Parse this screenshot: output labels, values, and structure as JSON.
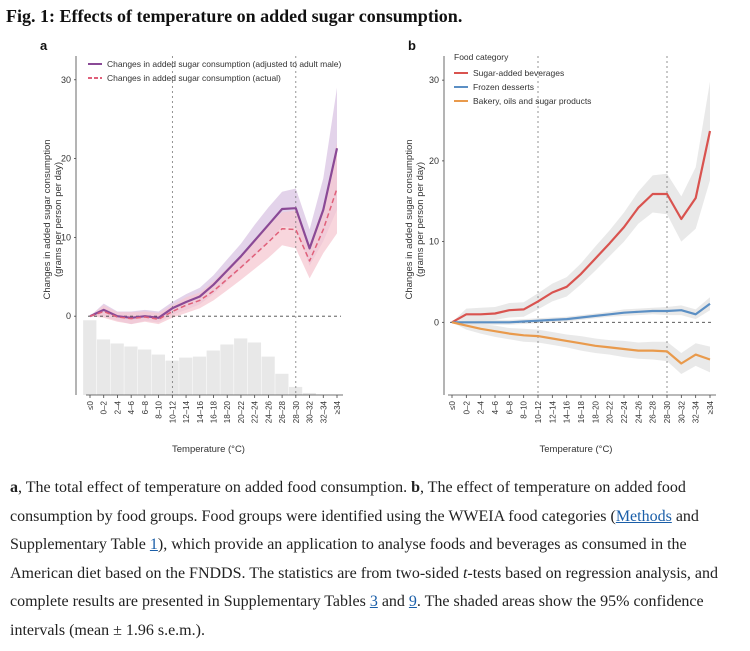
{
  "figure": {
    "title": "Fig. 1: Effects of temperature on added sugar consumption."
  },
  "caption": {
    "p1_label": "a",
    "p1_text": ", The total effect of temperature on added food consumption. ",
    "p2_label": "b",
    "p2_text": ", The effect of temperature on added food consumption by food groups. Food groups were identified using the WWEIA food categories (",
    "methods_link": "Methods",
    "p3_text": " and Supplementary Table ",
    "table1_link": "1",
    "p4_text": "), which provide an application to analyse foods and beverages as consumed in the American diet based on the FNDDS. The statistics are from two-sided ",
    "t_italic": "t",
    "p5_text": "-tests based on regression analysis, and complete results are presented in Supplementary Tables ",
    "table3_link": "3",
    "p6_text": " and ",
    "table9_link": "9",
    "p7_text": ". The shaded areas show the 95% confidence intervals (mean ± 1.96 s.e.m.)."
  },
  "colors": {
    "purple": "#8a4a96",
    "purple_band": "#d9c4e3",
    "pink": "#e0607a",
    "pink_band": "#f6c8d2",
    "red": "#d9534f",
    "blue": "#5b8fc4",
    "orange": "#e99a4c",
    "gray_band": "#e4e4e4",
    "hist": "#e8e8e8"
  },
  "chart_data": [
    {
      "panel": "a",
      "type": "line",
      "categories": [
        "≤0",
        "0–2",
        "2–4",
        "4–6",
        "6–8",
        "8–10",
        "10–12",
        "12–14",
        "14–16",
        "16–18",
        "18–20",
        "20–22",
        "22–24",
        "24–26",
        "26–28",
        "28–30",
        "30–32",
        "32–34",
        "≥34"
      ],
      "xlabel": "Temperature (°C)",
      "ylabel": "Changes in added sugar consumption (grams per person per day)",
      "ylim": [
        -10,
        32
      ],
      "yticks": [
        0,
        10,
        20,
        30
      ],
      "legend_position": "top",
      "reference_lines": {
        "y": 0,
        "x_categories": [
          "10–12",
          "28–30"
        ]
      },
      "series": [
        {
          "name": "Changes in added sugar consumption (adjusted to adult male)",
          "style": "solid",
          "values": [
            0,
            0.8,
            0,
            -0.2,
            0,
            -0.2,
            1.0,
            1.8,
            2.5,
            4.0,
            5.8,
            7.6,
            9.6,
            11.6,
            13.6,
            13.7,
            8.6,
            13.5,
            21.3
          ],
          "ci_lower": [
            0,
            0,
            -0.6,
            -1,
            -0.6,
            -0.8,
            0.2,
            0.8,
            1.5,
            2.8,
            4.4,
            6.0,
            7.6,
            9.4,
            11.4,
            11.2,
            6.4,
            9.5,
            13.5
          ],
          "ci_upper": [
            0,
            1.6,
            0.6,
            0.6,
            0.8,
            0.6,
            1.8,
            2.8,
            3.6,
            5.2,
            7.2,
            9.2,
            11.6,
            13.8,
            15.8,
            16.2,
            11.0,
            17.5,
            29.0
          ]
        },
        {
          "name": "Changes in added sugar consumption (actual)",
          "style": "dashed",
          "values": [
            0,
            0.6,
            -0.1,
            -0.3,
            -0.1,
            -0.4,
            0.6,
            1.4,
            2.0,
            3.2,
            4.7,
            6.2,
            7.8,
            9.4,
            11.1,
            11.0,
            7.0,
            11.0,
            16.2
          ],
          "ci_lower": [
            0,
            -0.2,
            -0.7,
            -1,
            -0.7,
            -1.0,
            -0.2,
            0.4,
            1.0,
            2.0,
            3.3,
            4.6,
            6.0,
            7.4,
            9.0,
            8.6,
            4.8,
            8.0,
            10.5
          ],
          "ci_upper": [
            0,
            1.4,
            0.5,
            0.5,
            0.6,
            0.4,
            1.4,
            2.4,
            3.0,
            4.4,
            6.1,
            7.8,
            9.6,
            11.4,
            13.2,
            13.4,
            9.2,
            14.0,
            22.0
          ]
        }
      ],
      "histogram": [
        7.4,
        5.5,
        5.1,
        4.8,
        4.5,
        4.0,
        3.4,
        3.7,
        3.8,
        4.4,
        5.0,
        5.6,
        5.2,
        3.8,
        2.1,
        0.8,
        0.2,
        0.05,
        0.02
      ]
    },
    {
      "panel": "b",
      "type": "line",
      "categories": [
        "≤0",
        "0–2",
        "2–4",
        "4–6",
        "6–8",
        "8–10",
        "10–12",
        "12–14",
        "14–16",
        "16–18",
        "18–20",
        "20–22",
        "22–24",
        "24–26",
        "26–28",
        "28–30",
        "30–32",
        "32–34",
        "≥34"
      ],
      "xlabel": "Temperature (°C)",
      "ylabel": "Changes in added sugar consumption (grams per person per day)",
      "ylim": [
        -9,
        32
      ],
      "yticks": [
        0,
        10,
        20,
        30
      ],
      "legend_title": "Food category",
      "legend_position": "top-left",
      "reference_lines": {
        "y": 0,
        "x_categories": [
          "10–12",
          "28–30"
        ]
      },
      "series": [
        {
          "name": "Sugar-added beverages",
          "values": [
            0,
            1.0,
            1.0,
            1.1,
            1.5,
            1.6,
            2.6,
            3.7,
            4.4,
            6.0,
            7.9,
            9.8,
            11.8,
            14.2,
            15.9,
            15.9,
            12.8,
            15.4,
            23.7
          ],
          "ci_lower": [
            0,
            0.3,
            0.2,
            0.3,
            0.6,
            0.7,
            1.6,
            2.6,
            3.2,
            4.7,
            6.4,
            8.2,
            10.0,
            12.2,
            13.6,
            13.4,
            10.0,
            11.6,
            17.6
          ],
          "ci_upper": [
            0,
            1.7,
            1.8,
            1.9,
            2.4,
            2.5,
            3.6,
            4.8,
            5.6,
            7.3,
            9.4,
            11.4,
            13.6,
            16.2,
            18.2,
            18.4,
            15.6,
            19.2,
            29.8
          ]
        },
        {
          "name": "Frozen desserts",
          "values": [
            0,
            0,
            0,
            0,
            0,
            0.1,
            0.2,
            0.3,
            0.4,
            0.6,
            0.8,
            1.0,
            1.2,
            1.3,
            1.4,
            1.4,
            1.5,
            1.0,
            2.3
          ],
          "ci_lower": [
            0,
            -0.3,
            -0.3,
            -0.3,
            -0.3,
            -0.2,
            -0.1,
            0,
            0.1,
            0.3,
            0.5,
            0.7,
            0.8,
            0.9,
            1.0,
            0.9,
            0.9,
            0.4,
            1.5
          ],
          "ci_upper": [
            0,
            0.3,
            0.3,
            0.3,
            0.3,
            0.4,
            0.5,
            0.6,
            0.7,
            0.9,
            1.1,
            1.3,
            1.6,
            1.7,
            1.8,
            1.9,
            2.1,
            1.6,
            3.1
          ]
        },
        {
          "name": "Bakery, oils and sugar products",
          "values": [
            0,
            -0.4,
            -0.8,
            -1.1,
            -1.4,
            -1.6,
            -1.7,
            -2.0,
            -2.3,
            -2.6,
            -2.9,
            -3.1,
            -3.3,
            -3.5,
            -3.5,
            -3.6,
            -5.1,
            -4.0,
            -4.6
          ],
          "ci_lower": [
            0,
            -0.9,
            -1.4,
            -1.8,
            -2.1,
            -2.4,
            -2.5,
            -2.8,
            -3.1,
            -3.5,
            -3.8,
            -4.0,
            -4.3,
            -4.5,
            -4.6,
            -4.8,
            -6.4,
            -5.4,
            -6.2
          ],
          "ci_upper": [
            0,
            0.1,
            -0.2,
            -0.4,
            -0.7,
            -0.8,
            -0.9,
            -1.2,
            -1.5,
            -1.7,
            -2.0,
            -2.2,
            -2.3,
            -2.5,
            -2.4,
            -2.4,
            -3.8,
            -2.6,
            -3.0
          ]
        }
      ]
    }
  ]
}
